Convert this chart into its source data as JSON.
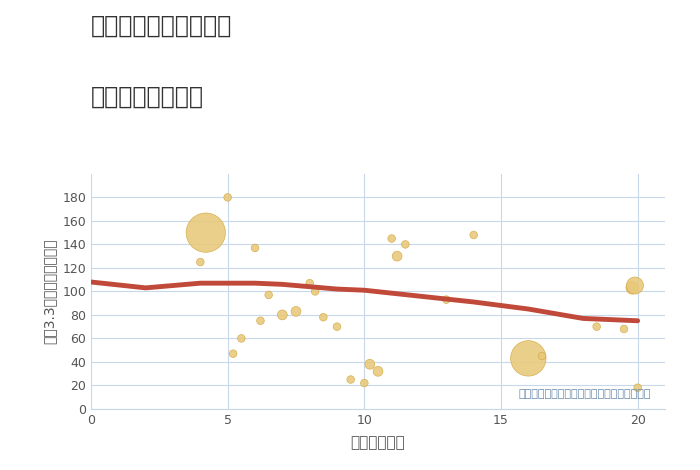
{
  "title_line1": "兵庫県西宮市門戸荘の",
  "title_line2": "駅距離別土地価格",
  "xlabel": "駅距離（分）",
  "ylabel": "坪（3.3㎡）単価（万円）",
  "annotation": "円の大きさは、取引のあった物件面積を示す",
  "bubble_color": "#E8C97A",
  "bubble_edge_color": "#D4A843",
  "line_color": "#C0493A",
  "background_color": "#FFFFFF",
  "grid_color": "#C8D8E8",
  "title_color": "#333333",
  "axis_color": "#555555",
  "annotation_color": "#6688AA",
  "xlim": [
    0,
    21
  ],
  "ylim": [
    0,
    200
  ],
  "xticks": [
    0,
    5,
    10,
    15,
    20
  ],
  "yticks": [
    0,
    20,
    40,
    60,
    80,
    100,
    120,
    140,
    160,
    180
  ],
  "scatter_x": [
    4.0,
    4.2,
    5.0,
    5.2,
    5.5,
    6.0,
    6.2,
    6.5,
    7.0,
    7.5,
    8.0,
    8.2,
    8.5,
    9.0,
    9.5,
    10.0,
    10.2,
    10.5,
    11.0,
    11.2,
    11.5,
    13.0,
    14.0,
    16.0,
    16.5,
    18.5,
    19.5,
    19.8,
    19.9,
    20.0
  ],
  "scatter_y": [
    125,
    150,
    180,
    47,
    60,
    137,
    75,
    97,
    80,
    83,
    107,
    100,
    78,
    70,
    25,
    22,
    38,
    32,
    145,
    130,
    140,
    93,
    148,
    43,
    45,
    70,
    68,
    103,
    105,
    18
  ],
  "scatter_s": [
    30,
    800,
    30,
    30,
    30,
    30,
    30,
    30,
    50,
    50,
    30,
    30,
    30,
    30,
    30,
    30,
    50,
    50,
    30,
    50,
    30,
    30,
    30,
    650,
    30,
    30,
    30,
    80,
    150,
    30
  ],
  "trend_x": [
    0,
    2,
    4,
    5,
    6,
    7,
    8,
    9,
    10,
    12,
    14,
    16,
    18,
    20
  ],
  "trend_y": [
    108,
    103,
    107,
    107,
    107,
    106,
    104,
    102,
    101,
    96,
    91,
    85,
    77,
    75
  ]
}
